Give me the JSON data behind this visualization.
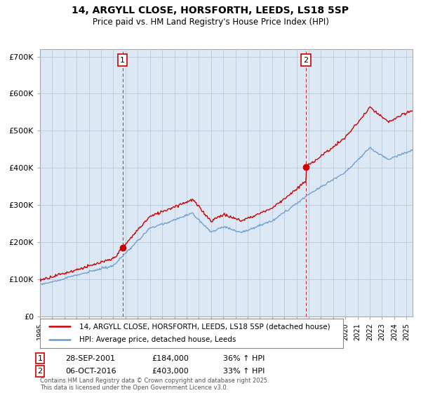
{
  "title": "14, ARGYLL CLOSE, HORSFORTH, LEEDS, LS18 5SP",
  "subtitle": "Price paid vs. HM Land Registry's House Price Index (HPI)",
  "background_color": "#ffffff",
  "plot_bg_color": "#dce9f5",
  "grid_color": "#b0c4d8",
  "house_color": "#cc0000",
  "hpi_color": "#6699cc",
  "ylim": [
    0,
    720000
  ],
  "yticks": [
    0,
    100000,
    200000,
    300000,
    400000,
    500000,
    600000,
    700000
  ],
  "ytick_labels": [
    "£0",
    "£100K",
    "£200K",
    "£300K",
    "£400K",
    "£500K",
    "£600K",
    "£700K"
  ],
  "sale1_year": 2001.75,
  "sale1_price": 184000,
  "sale2_year": 2016.77,
  "sale2_price": 403000,
  "legend_house": "14, ARGYLL CLOSE, HORSFORTH, LEEDS, LS18 5SP (detached house)",
  "legend_hpi": "HPI: Average price, detached house, Leeds",
  "annotation1_date": "28-SEP-2001",
  "annotation1_price": "£184,000",
  "annotation1_pct": "36% ↑ HPI",
  "annotation2_date": "06-OCT-2016",
  "annotation2_price": "£403,000",
  "annotation2_pct": "33% ↑ HPI",
  "footer": "Contains HM Land Registry data © Crown copyright and database right 2025.\nThis data is licensed under the Open Government Licence v3.0.",
  "xmin": 1995,
  "xmax": 2025.5
}
